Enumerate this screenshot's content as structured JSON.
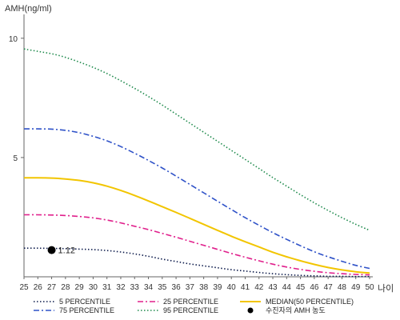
{
  "chart_data": {
    "type": "line",
    "title": "",
    "ylabel": "AMH(ng/ml)",
    "xlabel": "나이",
    "ylim": [
      0,
      11
    ],
    "yticks": [
      5,
      10
    ],
    "x": [
      25,
      26,
      27,
      28,
      29,
      30,
      31,
      32,
      33,
      34,
      35,
      36,
      37,
      38,
      39,
      40,
      41,
      42,
      43,
      44,
      45,
      46,
      47,
      48,
      49,
      50
    ],
    "grid": false,
    "legend_position": "bottom",
    "series": [
      {
        "name": "5 PERCENTILE",
        "color": "#0d1b4c",
        "dash": "dotted",
        "values": [
          1.2,
          1.2,
          1.19,
          1.18,
          1.16,
          1.14,
          1.1,
          1.04,
          0.96,
          0.86,
          0.74,
          0.64,
          0.54,
          0.46,
          0.38,
          0.3,
          0.24,
          0.18,
          0.13,
          0.09,
          0.06,
          0.04,
          0.02,
          0.02,
          0.01,
          0.01
        ]
      },
      {
        "name": "25 PERCENTILE",
        "color": "#e0208c",
        "dash": "dashdot",
        "values": [
          2.6,
          2.6,
          2.59,
          2.57,
          2.53,
          2.47,
          2.38,
          2.26,
          2.12,
          1.98,
          1.82,
          1.66,
          1.49,
          1.32,
          1.15,
          0.98,
          0.82,
          0.67,
          0.53,
          0.41,
          0.31,
          0.23,
          0.17,
          0.13,
          0.1,
          0.08
        ]
      },
      {
        "name": "MEDIAN(50 PERCENTILE)",
        "color": "#f2c500",
        "dash": "solid",
        "values": [
          4.15,
          4.15,
          4.14,
          4.1,
          4.04,
          3.94,
          3.8,
          3.62,
          3.41,
          3.18,
          2.94,
          2.7,
          2.45,
          2.2,
          1.95,
          1.7,
          1.47,
          1.25,
          1.03,
          0.84,
          0.67,
          0.52,
          0.39,
          0.29,
          0.21,
          0.16
        ]
      },
      {
        "name": "75 PERCENTILE",
        "color": "#2f52c8",
        "dash": "dashdot",
        "values": [
          6.2,
          6.2,
          6.19,
          6.14,
          6.04,
          5.89,
          5.7,
          5.46,
          5.18,
          4.88,
          4.56,
          4.22,
          3.87,
          3.52,
          3.17,
          2.82,
          2.48,
          2.16,
          1.85,
          1.57,
          1.3,
          1.05,
          0.84,
          0.65,
          0.48,
          0.35
        ]
      },
      {
        "name": "95 PERCENTILE",
        "color": "#1e8a4c",
        "dash": "dotted",
        "values": [
          9.55,
          9.45,
          9.35,
          9.2,
          9.0,
          8.78,
          8.52,
          8.22,
          7.9,
          7.56,
          7.2,
          6.82,
          6.44,
          6.06,
          5.68,
          5.3,
          4.92,
          4.54,
          4.16,
          3.8,
          3.44,
          3.1,
          2.78,
          2.48,
          2.2,
          1.95
        ]
      }
    ],
    "patient": {
      "name": "수진자의 AMH 농도",
      "x": 27,
      "value": 1.12,
      "label": "1.12",
      "color": "#000000"
    }
  }
}
